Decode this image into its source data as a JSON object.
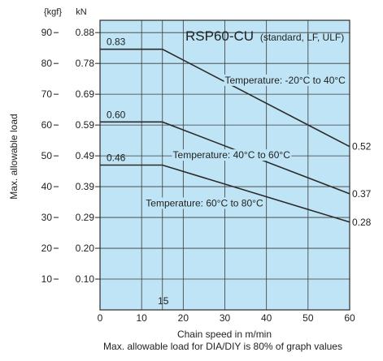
{
  "chart_data": {
    "type": "line",
    "title": "RSP60-CU",
    "subtitle": "(standard, LF, ULF)",
    "xlabel": "Chain speed in m/min",
    "ylabel": "Max. allowable load",
    "note": "Max. allowable load for DIA/DIY is 80% of graph values",
    "y_unit_kgf": "{kgf}",
    "y_unit_kn": "kN",
    "xlim": [
      0,
      60
    ],
    "ylim": [
      0,
      94
    ],
    "x_ticks": [
      "0",
      "10",
      "20",
      "30",
      "40",
      "50",
      "60"
    ],
    "x_tick_values": [
      0,
      10,
      20,
      30,
      40,
      50,
      60
    ],
    "y_ticks_kgf": [
      "10",
      "20",
      "30",
      "40",
      "50",
      "60",
      "70",
      "80",
      "90"
    ],
    "y_ticks_kn": [
      "0.10",
      "0.20",
      "0.29",
      "0.39",
      "0.49",
      "0.59",
      "0.69",
      "0.78",
      "0.88"
    ],
    "y_tick_values": [
      10,
      20,
      30,
      40,
      50,
      60,
      70,
      80,
      90
    ],
    "x_gridlines": [
      10,
      15,
      20,
      30,
      40,
      50
    ],
    "y_gridlines": [
      10,
      20,
      30,
      40,
      50,
      60,
      70,
      80,
      90
    ],
    "marker_label": "15",
    "marker_x": 15,
    "series": [
      {
        "name": "Temperature: -20°C to 40°C",
        "x": [
          0,
          15,
          60
        ],
        "y": [
          84.6,
          84.6,
          53
        ],
        "start_label": "0.83",
        "end_label": "0.52",
        "label_at": [
          30,
          73.5
        ]
      },
      {
        "name": "Temperature: 40°C to 60°C",
        "x": [
          0,
          15,
          60
        ],
        "y": [
          61,
          61,
          37.7
        ],
        "start_label": "0.60",
        "end_label": "0.37",
        "label_at": [
          17.5,
          49.2
        ]
      },
      {
        "name": "Temperature: 60°C to 80°C",
        "x": [
          0,
          15,
          60
        ],
        "y": [
          47,
          47,
          28.5
        ],
        "start_label": "0.46",
        "end_label": "0.28",
        "label_at": [
          11,
          33.6
        ]
      }
    ],
    "grid": true,
    "background_color": "#bfe4f5",
    "line_color": "#2b2b2b"
  }
}
